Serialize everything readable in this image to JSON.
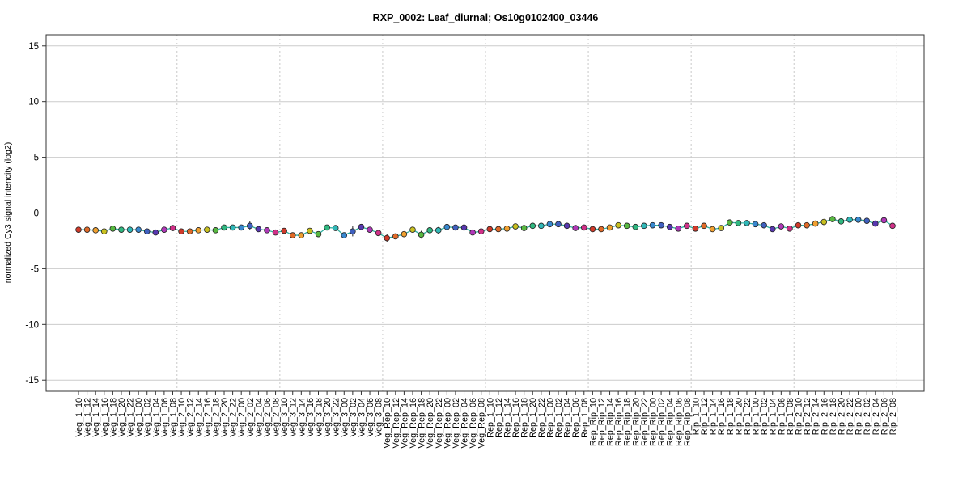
{
  "chart_data": {
    "type": "line",
    "title": "RXP_0002: Leaf_diurnal; Os10g0102400_03446",
    "ylabel": "normalized Cy3 signal intencity (log2)",
    "xlabel": "",
    "ylim": [
      -16,
      16
    ],
    "yticks": [
      -15,
      -10,
      -5,
      0,
      5,
      10,
      15
    ],
    "grid": true,
    "group_separators_after": [
      11,
      23,
      35,
      47,
      59,
      71,
      83,
      95
    ],
    "categories": [
      "Veg_1_10",
      "Veg_1_12",
      "Veg_1_14",
      "Veg_1_16",
      "Veg_1_18",
      "Veg_1_20",
      "Veg_1_22",
      "Veg_1_00",
      "Veg_1_02",
      "Veg_1_04",
      "Veg_1_06",
      "Veg_1_08",
      "Veg_2_10",
      "Veg_2_12",
      "Veg_2_14",
      "Veg_2_16",
      "Veg_2_18",
      "Veg_2_20",
      "Veg_2_22",
      "Veg_2_00",
      "Veg_2_02",
      "Veg_2_04",
      "Veg_2_06",
      "Veg_2_08",
      "Veg_3_10",
      "Veg_3_12",
      "Veg_3_14",
      "Veg_3_16",
      "Veg_3_18",
      "Veg_3_20",
      "Veg_3_22",
      "Veg_3_00",
      "Veg_3_02",
      "Veg_3_04",
      "Veg_3_06",
      "Veg_3_08",
      "Veg_Rep_10",
      "Veg_Rep_12",
      "Veg_Rep_14",
      "Veg_Rep_16",
      "Veg_Rep_18",
      "Veg_Rep_20",
      "Veg_Rep_22",
      "Veg_Rep_00",
      "Veg_Rep_02",
      "Veg_Rep_04",
      "Veg_Rep_06",
      "Veg_Rep_08",
      "Rep_1_10",
      "Rep_1_12",
      "Rep_1_14",
      "Rep_1_16",
      "Rep_1_18",
      "Rep_1_20",
      "Rep_1_22",
      "Rep_1_00",
      "Rep_1_02",
      "Rep_1_04",
      "Rep_1_06",
      "Rep_1_08",
      "Rep_Rip_10",
      "Rep_Rip_12",
      "Rep_Rip_14",
      "Rep_Rip_16",
      "Rep_Rip_18",
      "Rep_Rip_20",
      "Rep_Rip_22",
      "Rep_Rip_00",
      "Rep_Rip_02",
      "Rep_Rip_04",
      "Rep_Rip_06",
      "Rep_Rip_08",
      "Rip_1_10",
      "Rip_1_12",
      "Rip_1_14",
      "Rip_1_16",
      "Rip_1_18",
      "Rip_1_20",
      "Rip_1_22",
      "Rip_1_00",
      "Rip_1_02",
      "Rip_1_04",
      "Rip_1_06",
      "Rip_1_08",
      "Rip_2_10",
      "Rip_2_12",
      "Rip_2_14",
      "Rip_2_16",
      "Rip_2_18",
      "Rip_2_20",
      "Rip_2_22",
      "Rip_2_00",
      "Rip_2_02",
      "Rip_2_04",
      "Rip_2_06",
      "Rip_2_08"
    ],
    "values": [
      -1.5,
      -1.5,
      -1.55,
      -1.65,
      -1.4,
      -1.5,
      -1.5,
      -1.5,
      -1.65,
      -1.75,
      -1.5,
      -1.35,
      -1.65,
      -1.65,
      -1.55,
      -1.5,
      -1.55,
      -1.3,
      -1.3,
      -1.3,
      -1.15,
      -1.45,
      -1.55,
      -1.75,
      -1.6,
      -2.0,
      -2.0,
      -1.6,
      -1.9,
      -1.3,
      -1.35,
      -2.0,
      -1.65,
      -1.25,
      -1.5,
      -1.8,
      -2.25,
      -2.1,
      -1.9,
      -1.5,
      -1.95,
      -1.55,
      -1.55,
      -1.25,
      -1.3,
      -1.3,
      -1.75,
      -1.65,
      -1.45,
      -1.45,
      -1.4,
      -1.2,
      -1.35,
      -1.15,
      -1.15,
      -1.0,
      -1.0,
      -1.15,
      -1.35,
      -1.3,
      -1.45,
      -1.45,
      -1.3,
      -1.1,
      -1.15,
      -1.25,
      -1.15,
      -1.1,
      -1.1,
      -1.25,
      -1.4,
      -1.15,
      -1.4,
      -1.15,
      -1.45,
      -1.35,
      -0.85,
      -0.9,
      -0.9,
      -1.0,
      -1.1,
      -1.45,
      -1.2,
      -1.4,
      -1.1,
      -1.1,
      -0.95,
      -0.8,
      -0.55,
      -0.75,
      -0.6,
      -0.6,
      -0.7,
      -0.95,
      -0.65,
      -1.15
    ],
    "errors": [
      0.1,
      0.1,
      0.1,
      0.1,
      0.1,
      0.1,
      0.1,
      0.1,
      0.1,
      0.1,
      0.1,
      0.1,
      0.25,
      0.1,
      0.2,
      0.1,
      0.1,
      0.1,
      0.1,
      0.1,
      0.4,
      0.1,
      0.2,
      0.1,
      0.1,
      0.1,
      0.1,
      0.1,
      0.1,
      0.1,
      0.1,
      0.1,
      0.45,
      0.1,
      0.1,
      0.1,
      0.35,
      0.1,
      0.1,
      0.1,
      0.35,
      0.1,
      0.3,
      0.1,
      0.25,
      0.1,
      0.1,
      0.1,
      0.1,
      0.1,
      0.1,
      0.1,
      0.1,
      0.1,
      0.1,
      0.1,
      0.1,
      0.1,
      0.1,
      0.1,
      0.1,
      0.1,
      0.1,
      0.1,
      0.1,
      0.1,
      0.1,
      0.1,
      0.1,
      0.1,
      0.1,
      0.1,
      0.1,
      0.25,
      0.1,
      0.1,
      0.1,
      0.1,
      0.1,
      0.1,
      0.1,
      0.1,
      0.1,
      0.1,
      0.1,
      0.1,
      0.1,
      0.1,
      0.1,
      0.1,
      0.1,
      0.1,
      0.1,
      0.1,
      0.1,
      0.1
    ],
    "colors": [
      "#d03a2a",
      "#e06a28",
      "#f0a030",
      "#c8c020",
      "#58b840",
      "#30b880",
      "#30b8b8",
      "#3888d0",
      "#4060c0",
      "#5838b0",
      "#b038b8",
      "#d03088"
    ],
    "line_color": "#30b0a0"
  }
}
